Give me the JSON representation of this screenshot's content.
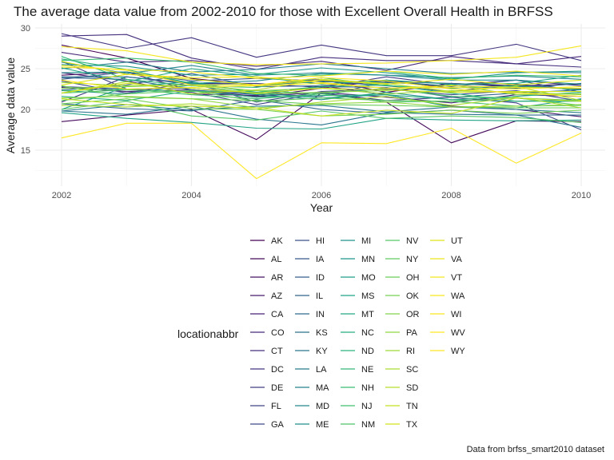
{
  "chart_data": {
    "type": "line",
    "title": "The average data value from 2002-2010 for those with Excellent Overall Health in BRFSS",
    "xlabel": "Year",
    "ylabel": "Average data value",
    "caption": "Data from brfss_smart2010 dataset",
    "legend_title": "locationabbr",
    "legend_position": "bottom",
    "grid": true,
    "xlim": [
      2002,
      2010
    ],
    "ylim": [
      11,
      30
    ],
    "x_ticks": [
      2002,
      2004,
      2006,
      2008,
      2010
    ],
    "y_ticks": [
      15,
      20,
      25,
      30
    ],
    "x": [
      2002,
      2003,
      2004,
      2005,
      2006,
      2007,
      2008,
      2009,
      2010
    ],
    "series": [
      {
        "name": "AK",
        "color": "#440154",
        "values": [
          27.9,
          26.3,
          23.8,
          23.0,
          23.7,
          22.1,
          23.2,
          22.9,
          23.1
        ]
      },
      {
        "name": "AL",
        "color": "#450a5c",
        "values": [
          18.5,
          19.3,
          20.0,
          16.3,
          22.0,
          20.9,
          15.9,
          18.6,
          18.5
        ]
      },
      {
        "name": "AR",
        "color": "#461265",
        "values": [
          24.2,
          24.6,
          22.3,
          21.5,
          22.6,
          23.6,
          22.6,
          23.0,
          22.4
        ]
      },
      {
        "name": "AZ",
        "color": "#471a6d",
        "values": [
          24.5,
          23.5,
          21.9,
          21.7,
          22.9,
          21.8,
          20.4,
          20.0,
          19.1
        ]
      },
      {
        "name": "CA",
        "color": "#472173",
        "values": [
          22.7,
          22.2,
          22.4,
          21.6,
          22.1,
          21.5,
          20.8,
          21.8,
          21.6
        ]
      },
      {
        "name": "CO",
        "color": "#472879",
        "values": [
          27.0,
          25.8,
          26.0,
          25.3,
          25.9,
          24.8,
          26.5,
          25.6,
          26.5
        ]
      },
      {
        "name": "CT",
        "color": "#462f7e",
        "values": [
          29.0,
          29.2,
          26.3,
          24.9,
          26.4,
          26.0,
          26.0,
          25.6,
          25.2
        ]
      },
      {
        "name": "DC",
        "color": "#453681",
        "values": [
          29.3,
          27.5,
          28.8,
          26.4,
          27.9,
          26.6,
          26.6,
          28.0,
          26.0
        ]
      },
      {
        "name": "DE",
        "color": "#433d84",
        "values": [
          20.9,
          24.0,
          23.2,
          23.2,
          22.7,
          24.0,
          23.0,
          23.6,
          22.9
        ]
      },
      {
        "name": "FL",
        "color": "#414487",
        "values": [
          25.9,
          22.5,
          22.1,
          20.6,
          22.0,
          21.1,
          21.5,
          20.8,
          17.5
        ]
      },
      {
        "name": "GA",
        "color": "#3e4a89",
        "values": [
          23.5,
          22.0,
          23.3,
          20.9,
          22.2,
          22.5,
          21.8,
          22.3,
          21.0
        ]
      },
      {
        "name": "HI",
        "color": "#3b518b",
        "values": [
          22.8,
          22.5,
          22.6,
          21.9,
          21.6,
          23.4,
          23.2,
          22.8,
          22.5
        ]
      },
      {
        "name": "IA",
        "color": "#38578c",
        "values": [
          23.7,
          24.6,
          23.5,
          23.8,
          23.5,
          22.9,
          22.2,
          23.1,
          22.4
        ]
      },
      {
        "name": "ID",
        "color": "#355e8d",
        "values": [
          22.4,
          23.0,
          24.4,
          22.8,
          22.9,
          23.5,
          22.8,
          23.6,
          22.1
        ]
      },
      {
        "name": "IL",
        "color": "#32648e",
        "values": [
          23.9,
          23.7,
          22.4,
          21.8,
          22.8,
          22.7,
          21.5,
          22.0,
          22.4
        ]
      },
      {
        "name": "IN",
        "color": "#2f6a8e",
        "values": [
          20.7,
          20.1,
          19.8,
          21.2,
          20.0,
          19.5,
          19.9,
          19.3,
          19.3
        ]
      },
      {
        "name": "KS",
        "color": "#2c708e",
        "values": [
          24.0,
          24.0,
          23.1,
          23.0,
          23.4,
          23.3,
          22.9,
          22.6,
          23.2
        ]
      },
      {
        "name": "KY",
        "color": "#2a768e",
        "values": [
          19.8,
          19.4,
          20.4,
          18.8,
          18.1,
          19.6,
          19.4,
          19.3,
          17.8
        ]
      },
      {
        "name": "LA",
        "color": "#287c8e",
        "values": [
          19.8,
          20.6,
          19.9,
          20.4,
          20.5,
          19.7,
          20.3,
          20.0,
          19.6
        ]
      },
      {
        "name": "MA",
        "color": "#26828e",
        "values": [
          25.0,
          25.8,
          24.6,
          24.9,
          25.6,
          25.0,
          24.4,
          24.6,
          24.5
        ]
      },
      {
        "name": "MD",
        "color": "#24878e",
        "values": [
          25.8,
          24.4,
          25.4,
          24.2,
          24.5,
          24.2,
          23.9,
          24.1,
          23.7
        ]
      },
      {
        "name": "ME",
        "color": "#228d8d",
        "values": [
          24.5,
          24.6,
          23.2,
          23.5,
          24.4,
          24.2,
          23.6,
          23.6,
          23.1
        ]
      },
      {
        "name": "MI",
        "color": "#21928c",
        "values": [
          22.3,
          21.9,
          23.0,
          21.8,
          21.2,
          22.1,
          21.2,
          21.0,
          21.2
        ]
      },
      {
        "name": "MN",
        "color": "#1f988b",
        "values": [
          25.5,
          25.3,
          24.2,
          24.3,
          25.1,
          24.5,
          23.7,
          24.5,
          24.7
        ]
      },
      {
        "name": "MO",
        "color": "#1f9e89",
        "values": [
          20.0,
          22.8,
          23.4,
          22.0,
          21.4,
          21.8,
          20.3,
          20.2,
          21.3
        ]
      },
      {
        "name": "MS",
        "color": "#21a386",
        "values": [
          19.6,
          18.9,
          18.4,
          17.7,
          17.6,
          18.9,
          18.7,
          18.6,
          18.7
        ]
      },
      {
        "name": "MT",
        "color": "#24a884",
        "values": [
          25.1,
          23.4,
          25.0,
          24.0,
          23.1,
          23.6,
          23.1,
          23.2,
          24.2
        ]
      },
      {
        "name": "NC",
        "color": "#28ae80",
        "values": [
          21.6,
          21.1,
          22.3,
          21.5,
          21.7,
          21.8,
          21.2,
          21.6,
          22.1
        ]
      },
      {
        "name": "ND",
        "color": "#2db27d",
        "values": [
          26.2,
          24.9,
          23.2,
          22.1,
          22.8,
          23.0,
          22.0,
          21.0,
          21.0
        ]
      },
      {
        "name": "NE",
        "color": "#34b779",
        "values": [
          26.5,
          23.7,
          22.9,
          22.7,
          23.9,
          22.9,
          22.6,
          22.9,
          22.4
        ]
      },
      {
        "name": "NH",
        "color": "#3bbc74",
        "values": [
          26.0,
          26.3,
          25.8,
          24.4,
          24.2,
          24.7,
          23.8,
          24.2,
          24.0
        ]
      },
      {
        "name": "NJ",
        "color": "#44bf70",
        "values": [
          22.3,
          22.5,
          21.8,
          21.3,
          21.9,
          22.6,
          21.6,
          21.4,
          21.1
        ]
      },
      {
        "name": "NM",
        "color": "#4dc36b",
        "values": [
          22.0,
          22.4,
          22.2,
          22.3,
          21.9,
          20.9,
          21.0,
          20.4,
          20.5
        ]
      },
      {
        "name": "NV",
        "color": "#56c667",
        "values": [
          20.0,
          21.0,
          19.2,
          18.7,
          19.8,
          18.9,
          19.2,
          19.0,
          18.4
        ]
      },
      {
        "name": "NY",
        "color": "#60ca60",
        "values": [
          21.1,
          21.9,
          22.3,
          21.0,
          21.4,
          21.1,
          21.0,
          21.4,
          20.5
        ]
      },
      {
        "name": "OH",
        "color": "#6bcd5a",
        "values": [
          22.9,
          21.5,
          21.3,
          21.1,
          20.6,
          20.5,
          20.3,
          20.2,
          20.2
        ]
      },
      {
        "name": "OK",
        "color": "#77d153",
        "values": [
          20.7,
          21.3,
          20.1,
          20.0,
          19.2,
          19.4,
          19.9,
          19.5,
          19.9
        ]
      },
      {
        "name": "OR",
        "color": "#83d44c",
        "values": [
          22.6,
          22.8,
          23.0,
          21.9,
          22.1,
          22.3,
          23.0,
          21.8,
          21.9
        ]
      },
      {
        "name": "PA",
        "color": "#90d743",
        "values": [
          21.4,
          21.6,
          21.3,
          20.2,
          20.7,
          20.9,
          20.3,
          20.4,
          20.6
        ]
      },
      {
        "name": "RI",
        "color": "#9dd93b",
        "values": [
          23.3,
          22.9,
          23.0,
          22.3,
          22.6,
          21.9,
          22.3,
          22.1,
          21.8
        ]
      },
      {
        "name": "SC",
        "color": "#aadc32",
        "values": [
          20.5,
          20.3,
          20.7,
          20.0,
          20.9,
          21.6,
          20.5,
          21.5,
          20.2
        ]
      },
      {
        "name": "SD",
        "color": "#b8de29",
        "values": [
          22.0,
          23.4,
          21.9,
          22.4,
          23.7,
          23.2,
          22.2,
          22.8,
          21.1
        ]
      },
      {
        "name": "TN",
        "color": "#c5e021",
        "values": [
          21.3,
          20.6,
          20.4,
          20.2,
          19.2,
          19.9,
          19.5,
          21.4,
          21.0
        ]
      },
      {
        "name": "TX",
        "color": "#d2e21b",
        "values": [
          22.0,
          23.2,
          22.6,
          22.0,
          22.6,
          22.4,
          22.1,
          22.2,
          22.2
        ]
      },
      {
        "name": "UT",
        "color": "#dfe318",
        "values": [
          23.0,
          24.3,
          23.7,
          23.0,
          23.6,
          23.1,
          23.7,
          23.0,
          23.6
        ]
      },
      {
        "name": "VA",
        "color": "#ece51b",
        "values": [
          25.9,
          24.3,
          23.9,
          24.0,
          23.3,
          22.6,
          22.9,
          22.7,
          22.6
        ]
      },
      {
        "name": "VT",
        "color": "#f4e61e",
        "values": [
          27.7,
          27.2,
          25.8,
          25.5,
          25.6,
          25.7,
          26.0,
          26.4,
          27.8
        ]
      },
      {
        "name": "WA",
        "color": "#f7e71e",
        "values": [
          25.2,
          24.9,
          24.6,
          23.8,
          24.1,
          24.7,
          24.3,
          24.7,
          24.1
        ]
      },
      {
        "name": "WI",
        "color": "#fae71f",
        "values": [
          23.6,
          22.5,
          22.7,
          22.9,
          23.2,
          22.6,
          22.7,
          22.5,
          22.8
        ]
      },
      {
        "name": "WV",
        "color": "#fde724",
        "values": [
          16.5,
          18.3,
          18.3,
          11.5,
          15.9,
          15.8,
          17.7,
          13.4,
          17.1
        ]
      },
      {
        "name": "WY",
        "color": "#fde725",
        "values": [
          25.4,
          24.8,
          23.0,
          23.0,
          23.9,
          23.5,
          22.5,
          22.0,
          21.6
        ]
      }
    ]
  }
}
